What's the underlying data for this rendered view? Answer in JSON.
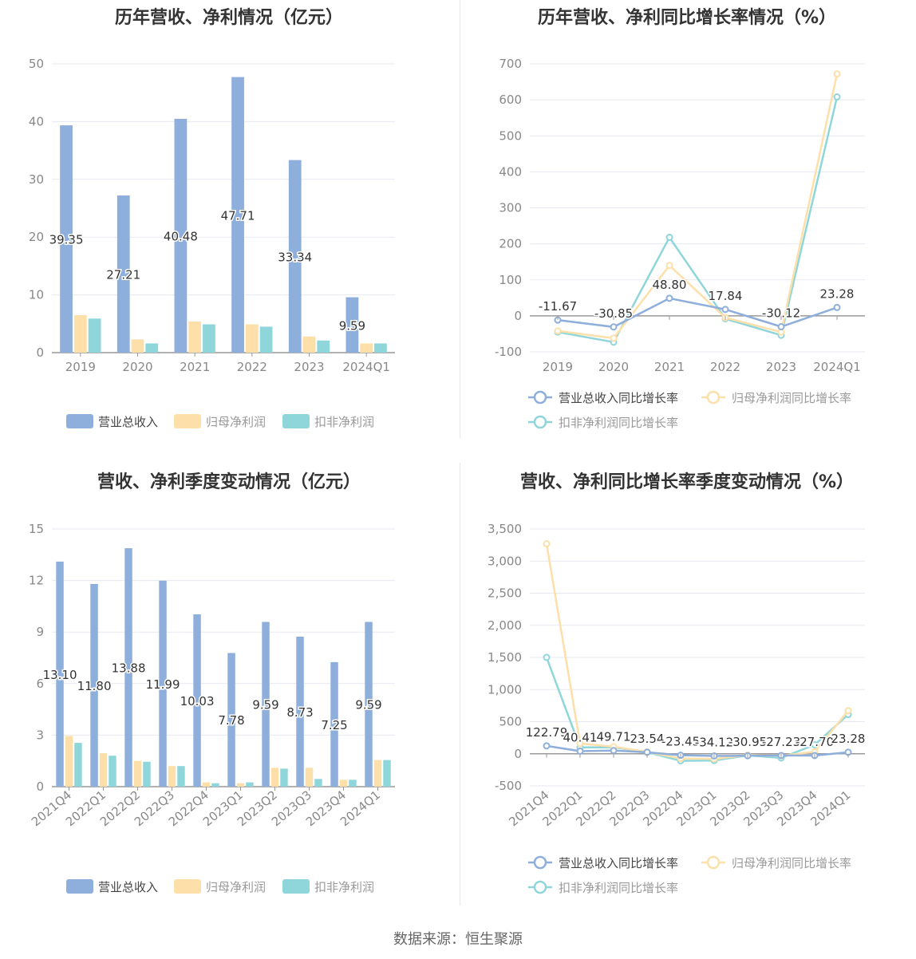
{
  "source": "数据来源：恒生聚源",
  "chart_data": [
    {
      "id": "c1",
      "type": "bar",
      "title": "历年营收、净利情况（亿元）",
      "categories": [
        "2019",
        "2020",
        "2021",
        "2022",
        "2023",
        "2024Q1"
      ],
      "ylim": [
        0,
        50
      ],
      "yticks": [
        0,
        10,
        20,
        30,
        40,
        50
      ],
      "series": [
        {
          "name": "营业总收入",
          "color": "#8eaedb",
          "values": [
            39.35,
            27.21,
            40.48,
            47.71,
            33.34,
            9.59
          ],
          "labels": [
            "39.35",
            "27.21",
            "40.48",
            "47.71",
            "33.34",
            "9.59"
          ]
        },
        {
          "name": "归母净利润",
          "color": "#fddfaa",
          "values": [
            6.5,
            2.3,
            5.4,
            4.9,
            2.8,
            1.6
          ]
        },
        {
          "name": "扣非净利润",
          "color": "#8fd6db",
          "values": [
            5.9,
            1.6,
            4.9,
            4.5,
            2.1,
            1.6
          ]
        }
      ],
      "legend": "bottom",
      "grid": true
    },
    {
      "id": "c2",
      "type": "line",
      "title": "历年营收、净利同比增长率情况（%）",
      "categories": [
        "2019",
        "2020",
        "2021",
        "2022",
        "2023",
        "2024Q1"
      ],
      "ylim": [
        -100,
        700
      ],
      "yticks": [
        -100,
        0,
        100,
        200,
        300,
        400,
        500,
        600,
        700
      ],
      "series": [
        {
          "name": "营业总收入同比增长率",
          "color": "#8eaedb",
          "values": [
            -11.67,
            -30.85,
            48.8,
            17.84,
            -30.12,
            23.28
          ],
          "labels": [
            "-11.67",
            "-30.85",
            "48.80",
            "17.84",
            "-30.12",
            "23.28"
          ]
        },
        {
          "name": "归母净利润同比增长率",
          "color": "#fddfaa",
          "values": [
            -42,
            -62,
            140,
            -5,
            -45,
            672
          ]
        },
        {
          "name": "扣非净利润同比增长率",
          "color": "#8fd6db",
          "values": [
            -45,
            -73,
            218,
            -8,
            -54,
            608
          ]
        }
      ],
      "legend": "bottom",
      "grid": true
    },
    {
      "id": "c3",
      "type": "bar",
      "title": "营收、净利季度变动情况（亿元）",
      "categories": [
        "2021Q4",
        "2022Q1",
        "2022Q2",
        "2022Q3",
        "2022Q4",
        "2023Q1",
        "2023Q2",
        "2023Q3",
        "2023Q4",
        "2024Q1"
      ],
      "ylim": [
        0,
        15
      ],
      "yticks": [
        0,
        3,
        6,
        9,
        12,
        15
      ],
      "series": [
        {
          "name": "营业总收入",
          "color": "#8eaedb",
          "values": [
            13.1,
            11.8,
            13.88,
            11.99,
            10.03,
            7.78,
            9.59,
            8.73,
            7.25,
            9.59
          ],
          "labels": [
            "13.10",
            "11.80",
            "13.88",
            "11.99",
            "10.03",
            "7.78",
            "9.59",
            "8.73",
            "7.25",
            "9.59"
          ]
        },
        {
          "name": "归母净利润",
          "color": "#fddfaa",
          "values": [
            2.95,
            1.95,
            1.5,
            1.2,
            0.25,
            0.2,
            1.1,
            1.1,
            0.4,
            1.55
          ]
        },
        {
          "name": "扣非净利润",
          "color": "#8fd6db",
          "values": [
            2.55,
            1.8,
            1.45,
            1.2,
            0.2,
            0.25,
            1.05,
            0.45,
            0.4,
            1.55
          ]
        }
      ],
      "legend": "bottom",
      "grid": true
    },
    {
      "id": "c4",
      "type": "line",
      "title": "营收、净利同比增长率季度变动情况（%）",
      "categories": [
        "2021Q4",
        "2022Q1",
        "2022Q2",
        "2022Q3",
        "2022Q4",
        "2023Q1",
        "2023Q2",
        "2023Q3",
        "2023Q4",
        "2024Q1"
      ],
      "ylim": [
        -500,
        3500
      ],
      "yticks": [
        -500,
        0,
        500,
        1000,
        1500,
        2000,
        2500,
        3000,
        3500
      ],
      "yticklabels": [
        "-500",
        "0",
        "500",
        "1,000",
        "1,500",
        "2,000",
        "2,500",
        "3,000",
        "3,500"
      ],
      "series": [
        {
          "name": "营业总收入同比增长率",
          "color": "#8eaedb",
          "values": [
            122.79,
            40.41,
            49.71,
            23.54,
            -23.45,
            -34.12,
            -30.95,
            -27.23,
            -27.7,
            23.28
          ],
          "labels": [
            "122.79",
            "40.41",
            "49.71",
            "23.54",
            "-23.45",
            "-34.12",
            "-30.95",
            "-27.23",
            "-27.70",
            "23.28"
          ]
        },
        {
          "name": "归母净利润同比增长率",
          "color": "#fddfaa",
          "values": [
            3270,
            160,
            110,
            30,
            -75,
            -80,
            -20,
            -30,
            30,
            670
          ]
        },
        {
          "name": "扣非净利润同比增长率",
          "color": "#8fd6db",
          "values": [
            1500,
            100,
            100,
            25,
            -110,
            -105,
            -25,
            -65,
            140,
            610
          ]
        }
      ],
      "legend": "bottom",
      "grid": true
    }
  ]
}
